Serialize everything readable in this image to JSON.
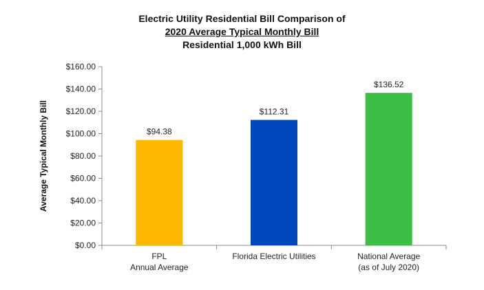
{
  "chart_data": {
    "type": "bar",
    "title": "Electric Utility Residential Bill Comparison of",
    "subtitle": "2020 Average Typical Monthly Bill",
    "subtitle2": "Residential 1,000 kWh Bill",
    "xlabel": "",
    "ylabel": "Average Typical Monthly Bill",
    "ylim": [
      0,
      160
    ],
    "yticks": [
      "$0.00",
      "$20.00",
      "$40.00",
      "$60.00",
      "$80.00",
      "$100.00",
      "$120.00",
      "$140.00",
      "$160.00"
    ],
    "categories": [
      [
        "FPL",
        "Annual Average"
      ],
      [
        "Florida Electric Utilities"
      ],
      [
        "National Average",
        "(as of July 2020)"
      ]
    ],
    "values": [
      94.38,
      112.31,
      136.52
    ],
    "data_labels": [
      "$94.38",
      "$112.31",
      "$136.52"
    ],
    "colors": [
      "#FFB800",
      "#0047BB",
      "#3DBE45"
    ],
    "grid": false,
    "legend": "none"
  }
}
